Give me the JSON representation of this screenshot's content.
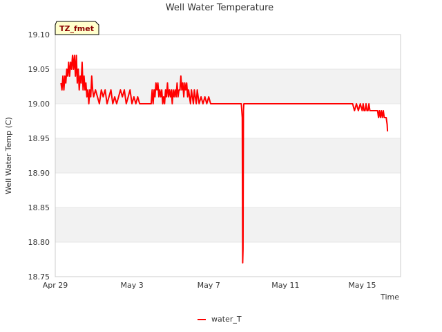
{
  "chart_data": {
    "type": "line",
    "title": "Well Water Temperature",
    "xlabel": "Time",
    "ylabel": "Well Water Temp (C)",
    "badge": "TZ_fmet",
    "x_unit": "days since Apr 29",
    "xlim": [
      0,
      18
    ],
    "ylim": [
      18.75,
      19.1
    ],
    "x_ticks": [
      {
        "value": 0,
        "label": "Apr 29"
      },
      {
        "value": 4,
        "label": "May 3"
      },
      {
        "value": 8,
        "label": "May 7"
      },
      {
        "value": 12,
        "label": "May 11"
      },
      {
        "value": 16,
        "label": "May 15"
      }
    ],
    "y_ticks": [
      {
        "value": 18.75,
        "label": "18.75"
      },
      {
        "value": 18.8,
        "label": "18.80"
      },
      {
        "value": 18.85,
        "label": "18.85"
      },
      {
        "value": 18.9,
        "label": "18.90"
      },
      {
        "value": 18.95,
        "label": "18.95"
      },
      {
        "value": 19.0,
        "label": "19.00"
      },
      {
        "value": 19.05,
        "label": "19.05"
      },
      {
        "value": 19.1,
        "label": "19.10"
      }
    ],
    "legend": {
      "position": "bottom-center"
    },
    "series": [
      {
        "name": "water_T",
        "color": "#ff0000",
        "points": [
          [
            0.3,
            19.03
          ],
          [
            0.35,
            19.02
          ],
          [
            0.4,
            19.04
          ],
          [
            0.45,
            19.02
          ],
          [
            0.5,
            19.04
          ],
          [
            0.55,
            19.03
          ],
          [
            0.6,
            19.05
          ],
          [
            0.65,
            19.04
          ],
          [
            0.7,
            19.06
          ],
          [
            0.75,
            19.04
          ],
          [
            0.8,
            19.06
          ],
          [
            0.85,
            19.05
          ],
          [
            0.9,
            19.07
          ],
          [
            0.95,
            19.05
          ],
          [
            1.0,
            19.07
          ],
          [
            1.05,
            19.04
          ],
          [
            1.1,
            19.07
          ],
          [
            1.15,
            19.03
          ],
          [
            1.2,
            19.05
          ],
          [
            1.25,
            19.02
          ],
          [
            1.3,
            19.04
          ],
          [
            1.35,
            19.03
          ],
          [
            1.4,
            19.06
          ],
          [
            1.45,
            19.02
          ],
          [
            1.5,
            19.04
          ],
          [
            1.55,
            19.02
          ],
          [
            1.6,
            19.03
          ],
          [
            1.65,
            19.01
          ],
          [
            1.7,
            19.02
          ],
          [
            1.75,
            19.0
          ],
          [
            1.8,
            19.02
          ],
          [
            1.85,
            19.01
          ],
          [
            1.9,
            19.04
          ],
          [
            1.95,
            19.02
          ],
          [
            2.0,
            19.01
          ],
          [
            2.1,
            19.02
          ],
          [
            2.2,
            19.01
          ],
          [
            2.3,
            19.0
          ],
          [
            2.4,
            19.02
          ],
          [
            2.5,
            19.01
          ],
          [
            2.6,
            19.02
          ],
          [
            2.7,
            19.0
          ],
          [
            2.8,
            19.01
          ],
          [
            2.9,
            19.02
          ],
          [
            3.0,
            19.0
          ],
          [
            3.1,
            19.01
          ],
          [
            3.2,
            19.0
          ],
          [
            3.3,
            19.01
          ],
          [
            3.4,
            19.02
          ],
          [
            3.5,
            19.01
          ],
          [
            3.6,
            19.02
          ],
          [
            3.7,
            19.0
          ],
          [
            3.8,
            19.01
          ],
          [
            3.9,
            19.02
          ],
          [
            4.0,
            19.0
          ],
          [
            4.1,
            19.01
          ],
          [
            4.2,
            19.0
          ],
          [
            4.3,
            19.01
          ],
          [
            4.4,
            19.0
          ],
          [
            4.5,
            19.0
          ],
          [
            4.6,
            19.0
          ],
          [
            4.7,
            19.0
          ],
          [
            4.8,
            19.0
          ],
          [
            5.0,
            19.0
          ],
          [
            5.05,
            19.02
          ],
          [
            5.1,
            19.0
          ],
          [
            5.15,
            19.02
          ],
          [
            5.2,
            19.01
          ],
          [
            5.25,
            19.03
          ],
          [
            5.3,
            19.02
          ],
          [
            5.35,
            19.03
          ],
          [
            5.4,
            19.01
          ],
          [
            5.45,
            19.02
          ],
          [
            5.5,
            19.01
          ],
          [
            5.55,
            19.02
          ],
          [
            5.6,
            19.0
          ],
          [
            5.65,
            19.01
          ],
          [
            5.7,
            19.0
          ],
          [
            5.75,
            19.02
          ],
          [
            5.8,
            19.01
          ],
          [
            5.85,
            19.03
          ],
          [
            5.9,
            19.01
          ],
          [
            5.95,
            19.02
          ],
          [
            6.0,
            19.01
          ],
          [
            6.05,
            19.02
          ],
          [
            6.1,
            19.0
          ],
          [
            6.15,
            19.02
          ],
          [
            6.2,
            19.01
          ],
          [
            6.25,
            19.02
          ],
          [
            6.3,
            19.01
          ],
          [
            6.35,
            19.03
          ],
          [
            6.4,
            19.01
          ],
          [
            6.45,
            19.02
          ],
          [
            6.5,
            19.02
          ],
          [
            6.55,
            19.04
          ],
          [
            6.6,
            19.02
          ],
          [
            6.65,
            19.03
          ],
          [
            6.7,
            19.01
          ],
          [
            6.75,
            19.03
          ],
          [
            6.8,
            19.02
          ],
          [
            6.85,
            19.03
          ],
          [
            6.9,
            19.01
          ],
          [
            6.95,
            19.02
          ],
          [
            7.0,
            19.01
          ],
          [
            7.05,
            19.0
          ],
          [
            7.1,
            19.02
          ],
          [
            7.15,
            19.01
          ],
          [
            7.2,
            19.0
          ],
          [
            7.25,
            19.02
          ],
          [
            7.3,
            19.01
          ],
          [
            7.35,
            19.0
          ],
          [
            7.4,
            19.02
          ],
          [
            7.45,
            19.01
          ],
          [
            7.5,
            19.0
          ],
          [
            7.6,
            19.01
          ],
          [
            7.7,
            19.0
          ],
          [
            7.8,
            19.01
          ],
          [
            7.9,
            19.0
          ],
          [
            8.0,
            19.01
          ],
          [
            8.1,
            19.0
          ],
          [
            8.2,
            19.0
          ],
          [
            8.3,
            19.0
          ],
          [
            8.4,
            19.0
          ],
          [
            8.5,
            19.0
          ],
          [
            8.6,
            19.0
          ],
          [
            8.7,
            19.0
          ],
          [
            8.8,
            19.0
          ],
          [
            8.9,
            19.0
          ],
          [
            9.0,
            19.0
          ],
          [
            9.1,
            19.0
          ],
          [
            9.2,
            19.0
          ],
          [
            9.3,
            19.0
          ],
          [
            9.4,
            19.0
          ],
          [
            9.5,
            19.0
          ],
          [
            9.6,
            19.0
          ],
          [
            9.7,
            19.0
          ],
          [
            9.75,
            18.98
          ],
          [
            9.77,
            18.77
          ],
          [
            9.79,
            18.79
          ],
          [
            9.81,
            18.99
          ],
          [
            9.83,
            19.0
          ],
          [
            9.9,
            19.0
          ],
          [
            10.0,
            19.0
          ],
          [
            11.0,
            19.0
          ],
          [
            12.0,
            19.0
          ],
          [
            13.0,
            19.0
          ],
          [
            13.5,
            19.0
          ],
          [
            13.7,
            19.0
          ],
          [
            14.0,
            19.0
          ],
          [
            14.5,
            19.0
          ],
          [
            15.0,
            19.0
          ],
          [
            15.5,
            19.0
          ],
          [
            15.6,
            18.99
          ],
          [
            15.7,
            19.0
          ],
          [
            15.8,
            18.99
          ],
          [
            15.9,
            19.0
          ],
          [
            16.0,
            18.99
          ],
          [
            16.05,
            19.0
          ],
          [
            16.1,
            18.99
          ],
          [
            16.15,
            18.99
          ],
          [
            16.2,
            19.0
          ],
          [
            16.25,
            18.99
          ],
          [
            16.3,
            18.99
          ],
          [
            16.35,
            19.0
          ],
          [
            16.4,
            18.99
          ],
          [
            16.45,
            18.99
          ],
          [
            16.5,
            18.99
          ],
          [
            16.55,
            18.99
          ],
          [
            16.6,
            18.99
          ],
          [
            16.65,
            18.99
          ],
          [
            16.7,
            18.99
          ],
          [
            16.75,
            18.99
          ],
          [
            16.8,
            18.99
          ],
          [
            16.85,
            18.98
          ],
          [
            16.9,
            18.99
          ],
          [
            16.95,
            18.98
          ],
          [
            17.0,
            18.99
          ],
          [
            17.05,
            18.98
          ],
          [
            17.1,
            18.99
          ],
          [
            17.15,
            18.98
          ],
          [
            17.2,
            18.98
          ],
          [
            17.25,
            18.98
          ],
          [
            17.3,
            18.97
          ],
          [
            17.32,
            18.96
          ]
        ]
      }
    ]
  }
}
